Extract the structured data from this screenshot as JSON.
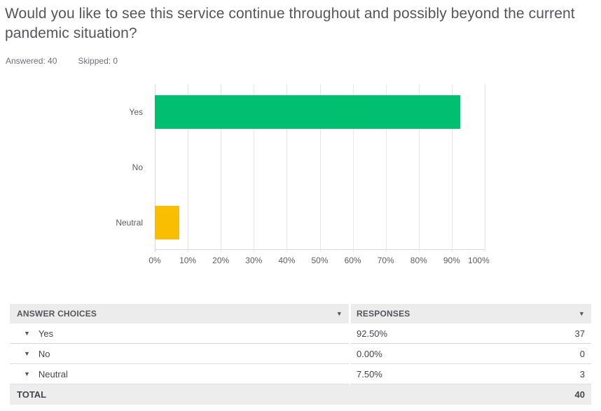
{
  "question": {
    "title": "Would you like to see this service continue throughout and possibly beyond the current pandemic situation?",
    "answered_label": "Answered: 40",
    "skipped_label": "Skipped: 0"
  },
  "chart_data": {
    "type": "bar",
    "orientation": "horizontal",
    "categories": [
      "Yes",
      "No",
      "Neutral"
    ],
    "values": [
      92.5,
      0,
      7.5
    ],
    "bar_colors": [
      "#00BF6F",
      "#00BF6F",
      "#F9BE00"
    ],
    "x_ticks": [
      "0%",
      "10%",
      "20%",
      "30%",
      "40%",
      "50%",
      "60%",
      "70%",
      "80%",
      "90%",
      "100%"
    ],
    "xlim": [
      0,
      100
    ],
    "grid": true,
    "legend": "none",
    "title": "",
    "xlabel": "",
    "ylabel": ""
  },
  "table": {
    "columns": {
      "choices": "ANSWER CHOICES",
      "responses": "RESPONSES"
    },
    "rows": [
      {
        "choice": "Yes",
        "percent": "92.50%",
        "count": "37"
      },
      {
        "choice": "No",
        "percent": "0.00%",
        "count": "0"
      },
      {
        "choice": "Neutral",
        "percent": "7.50%",
        "count": "3"
      }
    ],
    "total_label": "TOTAL",
    "total_count": "40"
  },
  "icons": {
    "column_sort": "caret-down-icon",
    "row_toggle": "caret-down-icon"
  },
  "colors": {
    "title_text": "#54565B",
    "positive_bar": "#00BF6F",
    "neutral_bar": "#F9BE00",
    "header_bg": "#ECECEC",
    "total_bg": "#EDEDED"
  }
}
